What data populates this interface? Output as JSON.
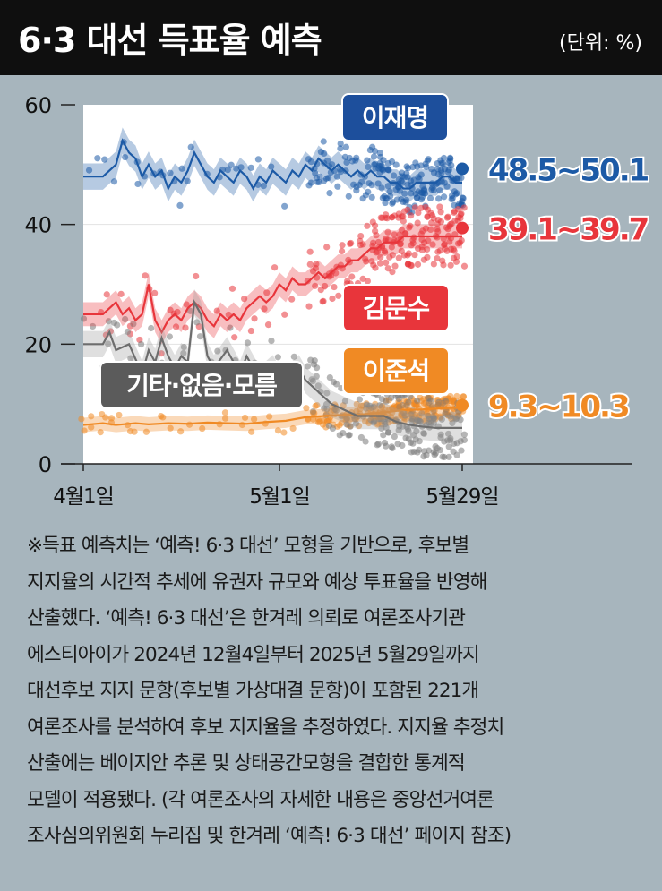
{
  "header": {
    "title": "6·3 대선 득표율 예측",
    "unit": "(단위: %)"
  },
  "chart_data": {
    "type": "line",
    "title": "6·3 대선 득표율 예측",
    "unit": "(단위: %)",
    "yticks": [
      0,
      20,
      40,
      60
    ],
    "ylim": [
      0,
      60
    ],
    "xticks": [
      "4월1일",
      "5월1일",
      "5월29일"
    ],
    "series": [
      {
        "name": "이재명",
        "color": "#1c5aa6",
        "range_label": "48.5~50.1",
        "final": 49.3,
        "points": [
          [
            0,
            48
          ],
          [
            3,
            48
          ],
          [
            5,
            50
          ],
          [
            6,
            54
          ],
          [
            7,
            52
          ],
          [
            8,
            51
          ],
          [
            9,
            48
          ],
          [
            10,
            50
          ],
          [
            11,
            48
          ],
          [
            12,
            49
          ],
          [
            13,
            46
          ],
          [
            14,
            48
          ],
          [
            15,
            47
          ],
          [
            16,
            49
          ],
          [
            17,
            52
          ],
          [
            18,
            50
          ],
          [
            19,
            48
          ],
          [
            20,
            47
          ],
          [
            21,
            49
          ],
          [
            22,
            48
          ],
          [
            23,
            47
          ],
          [
            24,
            49
          ],
          [
            25,
            48
          ],
          [
            26,
            46
          ],
          [
            27,
            48
          ],
          [
            28,
            47
          ],
          [
            29,
            49
          ],
          [
            30,
            48
          ],
          [
            31,
            47
          ],
          [
            32,
            49
          ],
          [
            33,
            48
          ],
          [
            34,
            50
          ],
          [
            35,
            49
          ],
          [
            36,
            51
          ],
          [
            37,
            50
          ],
          [
            38,
            49
          ],
          [
            39,
            50
          ],
          [
            40,
            49
          ],
          [
            41,
            48
          ],
          [
            42,
            49
          ],
          [
            43,
            48
          ],
          [
            44,
            49
          ],
          [
            45,
            48
          ],
          [
            46,
            48
          ],
          [
            47,
            47
          ],
          [
            48,
            47
          ],
          [
            49,
            46
          ],
          [
            50,
            46
          ],
          [
            51,
            47
          ],
          [
            52,
            47
          ],
          [
            53,
            47
          ],
          [
            54,
            47
          ],
          [
            55,
            48
          ],
          [
            56,
            48
          ],
          [
            57,
            47
          ],
          [
            58,
            47
          ]
        ]
      },
      {
        "name": "김문수",
        "color": "#e8353b",
        "range_label": "39.1~39.7",
        "final": 39.4,
        "points": [
          [
            0,
            25
          ],
          [
            3,
            25
          ],
          [
            5,
            27
          ],
          [
            6,
            25
          ],
          [
            7,
            26
          ],
          [
            8,
            24
          ],
          [
            9,
            25
          ],
          [
            10,
            30
          ],
          [
            11,
            24
          ],
          [
            12,
            22
          ],
          [
            13,
            24
          ],
          [
            14,
            25
          ],
          [
            15,
            24
          ],
          [
            16,
            26
          ],
          [
            17,
            27
          ],
          [
            18,
            26
          ],
          [
            19,
            24
          ],
          [
            20,
            23
          ],
          [
            21,
            25
          ],
          [
            22,
            24
          ],
          [
            23,
            25
          ],
          [
            24,
            24
          ],
          [
            25,
            26
          ],
          [
            26,
            27
          ],
          [
            27,
            28
          ],
          [
            28,
            27
          ],
          [
            29,
            28
          ],
          [
            30,
            30
          ],
          [
            31,
            29
          ],
          [
            32,
            31
          ],
          [
            33,
            30
          ],
          [
            34,
            30
          ],
          [
            35,
            31
          ],
          [
            36,
            32
          ],
          [
            37,
            31
          ],
          [
            38,
            32
          ],
          [
            39,
            33
          ],
          [
            40,
            33
          ],
          [
            41,
            34
          ],
          [
            42,
            34
          ],
          [
            43,
            35
          ],
          [
            44,
            36
          ],
          [
            45,
            36
          ],
          [
            46,
            37
          ],
          [
            47,
            37
          ],
          [
            48,
            37
          ],
          [
            49,
            38
          ],
          [
            50,
            38
          ],
          [
            51,
            38
          ],
          [
            52,
            38
          ],
          [
            53,
            38
          ],
          [
            54,
            38
          ],
          [
            55,
            38
          ],
          [
            56,
            38
          ],
          [
            57,
            38
          ],
          [
            58,
            38
          ]
        ]
      },
      {
        "name": "이준석",
        "color": "#f08a24",
        "range_label": "9.3~10.3",
        "final": 9.8,
        "points": [
          [
            0,
            6.5
          ],
          [
            3,
            6.8
          ],
          [
            5,
            6.5
          ],
          [
            8,
            6.8
          ],
          [
            10,
            6.6
          ],
          [
            13,
            6.8
          ],
          [
            16,
            6.7
          ],
          [
            19,
            6.9
          ],
          [
            22,
            6.8
          ],
          [
            25,
            6.7
          ],
          [
            28,
            7.0
          ],
          [
            31,
            7.2
          ],
          [
            34,
            7.8
          ],
          [
            37,
            8.0
          ],
          [
            40,
            8.2
          ],
          [
            43,
            8.3
          ],
          [
            46,
            8.6
          ],
          [
            49,
            9.0
          ],
          [
            52,
            9.1
          ],
          [
            55,
            9.3
          ],
          [
            58,
            9.4
          ]
        ]
      },
      {
        "name": "기타·없음·모름",
        "color": "#5b5b5b",
        "range_label": "",
        "final": null,
        "points": [
          [
            0,
            20
          ],
          [
            3,
            20
          ],
          [
            4,
            22
          ],
          [
            5,
            19
          ],
          [
            7,
            20
          ],
          [
            9,
            15
          ],
          [
            10,
            19
          ],
          [
            11,
            17
          ],
          [
            12,
            21
          ],
          [
            13,
            18
          ],
          [
            14,
            16
          ],
          [
            15,
            18
          ],
          [
            16,
            17
          ],
          [
            17,
            27
          ],
          [
            18,
            25
          ],
          [
            19,
            18
          ],
          [
            20,
            16
          ],
          [
            22,
            19
          ],
          [
            23,
            17
          ],
          [
            24,
            15
          ],
          [
            25,
            18
          ],
          [
            26,
            16
          ],
          [
            27,
            14
          ],
          [
            29,
            16
          ],
          [
            30,
            14
          ],
          [
            31,
            13
          ],
          [
            32,
            15
          ],
          [
            33,
            16
          ],
          [
            34,
            14
          ],
          [
            36,
            12
          ],
          [
            38,
            10
          ],
          [
            40,
            9
          ],
          [
            42,
            8
          ],
          [
            44,
            8
          ],
          [
            46,
            8
          ],
          [
            48,
            7
          ],
          [
            50,
            6.5
          ],
          [
            52,
            6.2
          ],
          [
            54,
            6.0
          ],
          [
            56,
            6.0
          ],
          [
            58,
            6.0
          ]
        ]
      }
    ],
    "note": [
      "※득표 예측치는 ‘예측! 6·3 대선’ 모형을 기반으로, 후보별",
      "지지율의 시간적 추세에 유권자 규모와 예상 투표율을 반영해",
      "산출했다. ‘예측! 6·3 대선’은 한겨레 의뢰로 여론조사기관",
      "에스티아이가 2024년 12월4일부터 2025년 5월29일까지",
      "대선후보 지지 문항(후보별 가상대결 문항)이 포함된 221개",
      "여론조사를 분석하여 후보 지지율을 추정하였다. 지지율 추정치",
      "산출에는 베이지안 추론 및 상태공간모형을 결합한 통계적",
      "모델이 적용됐다. (각 여론조사의 자세한 내용은 중앙선거여론",
      "조사심의위원회 누리집 및 한겨레 ‘예측! 6·3 대선’ 페이지 참조)"
    ]
  }
}
